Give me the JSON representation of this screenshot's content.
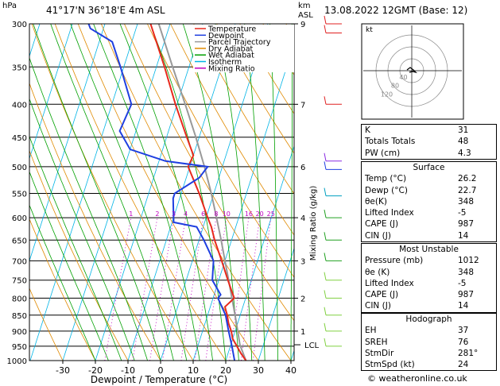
{
  "header": {
    "location": "41°17'N  36°18'E  4m  ASL",
    "datetime": "13.08.2022  12GMT  (Base: 12)",
    "hpa_label": "hPa",
    "km_label": "km",
    "asl_label": "ASL"
  },
  "legend": [
    {
      "label": "Temperature",
      "color": "#e8291c"
    },
    {
      "label": "Dewpoint",
      "color": "#1f3fe0"
    },
    {
      "label": "Parcel Trajectory",
      "color": "#999999"
    },
    {
      "label": "Dry Adiabat",
      "color": "#e08a00"
    },
    {
      "label": "Wet Adiabat",
      "color": "#00a000"
    },
    {
      "label": "Isotherm",
      "color": "#00b4e6"
    },
    {
      "label": "Mixing Ratio",
      "color": "#c000c0"
    }
  ],
  "chart_data": {
    "type": "skew-t",
    "xlabel": "Dewpoint / Temperature (°C)",
    "ylabel_right": "Mixing Ratio (g/kg)",
    "pressure_ticks": [
      "300",
      "350",
      "400",
      "450",
      "500",
      "550",
      "600",
      "650",
      "700",
      "750",
      "800",
      "850",
      "900",
      "950",
      "1000"
    ],
    "temp_ticks": [
      "-30",
      "-20",
      "-10",
      "0",
      "10",
      "20",
      "30",
      "40"
    ],
    "km_ticks": [
      {
        "p": 300,
        "label": "9"
      },
      {
        "p": 400,
        "label": "7"
      },
      {
        "p": 500,
        "label": "6"
      },
      {
        "p": 600,
        "label": "4"
      },
      {
        "p": 700,
        "label": "3"
      },
      {
        "p": 800,
        "label": "2"
      },
      {
        "p": 900,
        "label": "1"
      }
    ],
    "mixing_ratio_labels": [
      "1",
      "2",
      "3",
      "4",
      "6",
      "8",
      "10",
      "16",
      "20",
      "25"
    ],
    "mixing_ratio_values": [
      1,
      2,
      3,
      4,
      6,
      8,
      10,
      16,
      20,
      25
    ],
    "lcl_label": "LCL",
    "lcl_pressure": 945,
    "xlim": [
      -35,
      40
    ],
    "ylim": [
      1000,
      300
    ],
    "temperature": [
      [
        1000,
        26.2
      ],
      [
        975,
        24.0
      ],
      [
        950,
        22.0
      ],
      [
        925,
        20.0
      ],
      [
        900,
        18.8
      ],
      [
        875,
        17.2
      ],
      [
        850,
        16.0
      ],
      [
        825,
        14.5
      ],
      [
        800,
        16.5
      ],
      [
        780,
        15.0
      ],
      [
        750,
        12.8
      ],
      [
        700,
        9.0
      ],
      [
        650,
        4.8
      ],
      [
        620,
        2.5
      ],
      [
        600,
        0.5
      ],
      [
        550,
        -4.5
      ],
      [
        500,
        -10.5
      ],
      [
        480,
        -10.0
      ],
      [
        450,
        -13.8
      ],
      [
        400,
        -20.5
      ],
      [
        350,
        -27.5
      ],
      [
        300,
        -36.0
      ]
    ],
    "dewpoint": [
      [
        1000,
        22.7
      ],
      [
        950,
        20.5
      ],
      [
        900,
        18.0
      ],
      [
        850,
        15.5
      ],
      [
        800,
        11.5
      ],
      [
        790,
        12.0
      ],
      [
        750,
        8.0
      ],
      [
        700,
        6.5
      ],
      [
        650,
        1.5
      ],
      [
        620,
        -2.0
      ],
      [
        610,
        -9.5
      ],
      [
        560,
        -12.0
      ],
      [
        550,
        -12.0
      ],
      [
        520,
        -6.0
      ],
      [
        500,
        -4.5
      ],
      [
        490,
        -18.0
      ],
      [
        470,
        -30.0
      ],
      [
        440,
        -35.0
      ],
      [
        400,
        -34.0
      ],
      [
        350,
        -41.0
      ],
      [
        320,
        -46.0
      ],
      [
        305,
        -54.0
      ],
      [
        300,
        -55.0
      ]
    ],
    "parcel": [
      [
        1000,
        26.2
      ],
      [
        945,
        22.8
      ],
      [
        900,
        20.8
      ],
      [
        850,
        18.4
      ],
      [
        800,
        15.8
      ],
      [
        750,
        13.0
      ],
      [
        700,
        10.0
      ],
      [
        650,
        6.8
      ],
      [
        600,
        3.2
      ],
      [
        550,
        -0.8
      ],
      [
        500,
        -5.5
      ],
      [
        450,
        -11.0
      ],
      [
        400,
        -17.5
      ],
      [
        350,
        -25.0
      ],
      [
        300,
        -33.5
      ]
    ]
  },
  "hodograph": {
    "label": "kt",
    "rings": [
      "120",
      "80",
      "40"
    ]
  },
  "indices": [
    {
      "k": "K",
      "v": "31"
    },
    {
      "k": "Totals Totals",
      "v": "48"
    },
    {
      "k": "PW (cm)",
      "v": "4.3"
    }
  ],
  "surface": {
    "title": "Surface",
    "rows": [
      {
        "k": "Temp (°C)",
        "v": "26.2"
      },
      {
        "k": "Dewp (°C)",
        "v": "22.7"
      },
      {
        "k": "θe(K)",
        "v": "348"
      },
      {
        "k": "Lifted Index",
        "v": "-5"
      },
      {
        "k": "CAPE (J)",
        "v": "987"
      },
      {
        "k": "CIN (J)",
        "v": "14"
      }
    ]
  },
  "unstable": {
    "title": "Most Unstable",
    "rows": [
      {
        "k": "Pressure (mb)",
        "v": "1012"
      },
      {
        "k": "θe (K)",
        "v": "348"
      },
      {
        "k": "Lifted Index",
        "v": "-5"
      },
      {
        "k": "CAPE (J)",
        "v": "987"
      },
      {
        "k": "CIN (J)",
        "v": "14"
      }
    ]
  },
  "hodo_table": {
    "title": "Hodograph",
    "rows": [
      {
        "k": "EH",
        "v": "37"
      },
      {
        "k": "SREH",
        "v": "76"
      },
      {
        "k": "StmDir",
        "v": "281°"
      },
      {
        "k": "StmSpd (kt)",
        "v": "24"
      }
    ]
  },
  "copyright": "© weatheronline.co.uk"
}
